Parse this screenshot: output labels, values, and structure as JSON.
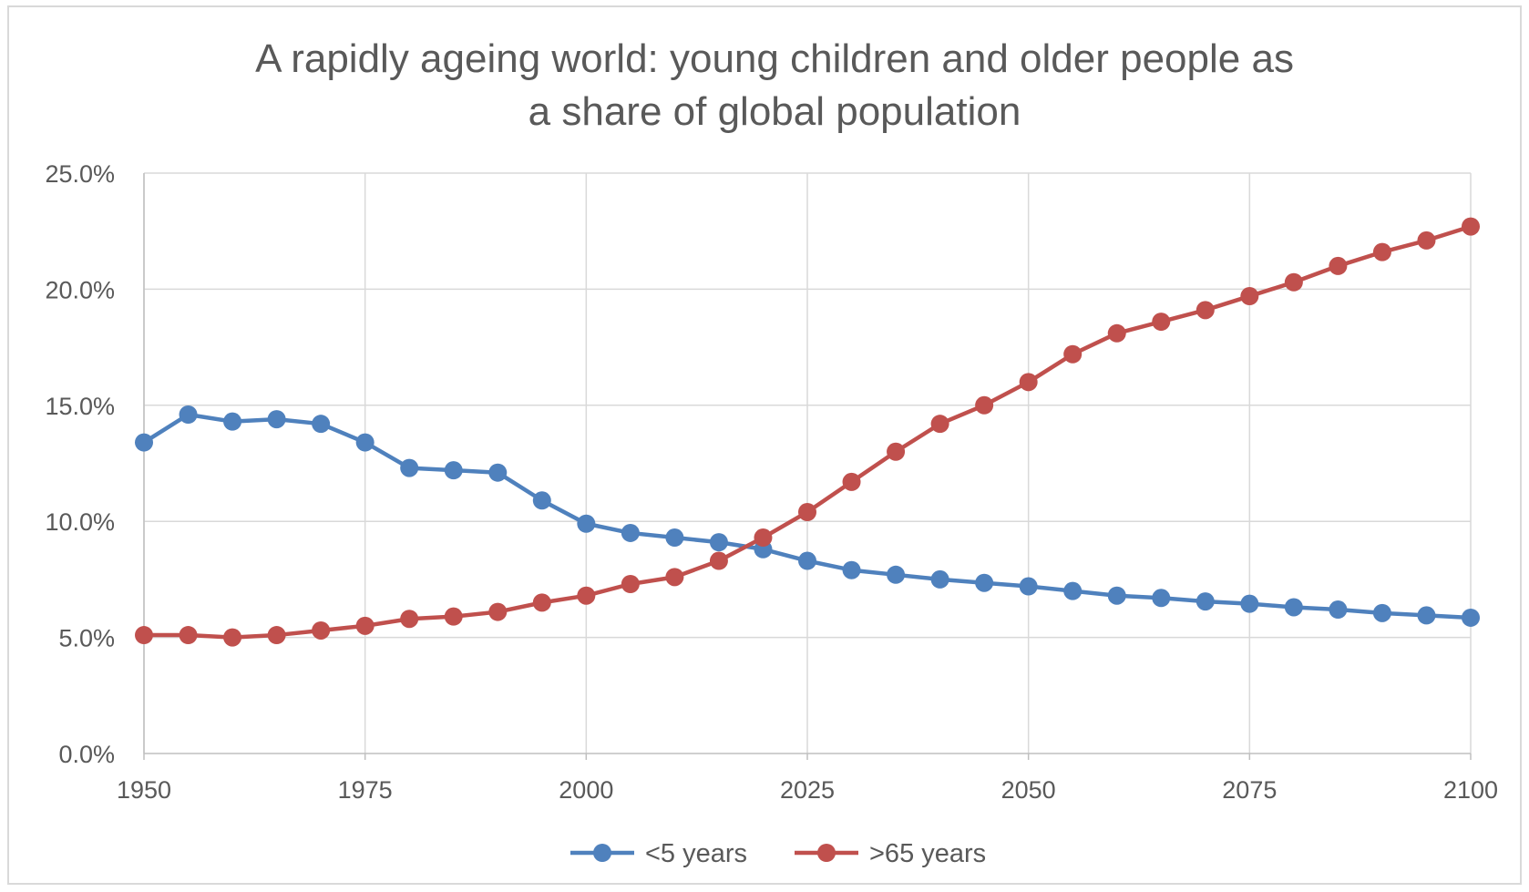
{
  "chart_data": {
    "type": "line",
    "title": "A rapidly ageing world: young children and older people as a share of global population",
    "title_lines": [
      "A rapidly ageing world: young children and older people as",
      "a share of global population"
    ],
    "xlabel": "",
    "ylabel": "",
    "x": [
      1950,
      1955,
      1960,
      1965,
      1970,
      1975,
      1980,
      1985,
      1990,
      1995,
      2000,
      2005,
      2010,
      2015,
      2020,
      2025,
      2030,
      2035,
      2040,
      2045,
      2050,
      2055,
      2060,
      2065,
      2070,
      2075,
      2080,
      2085,
      2090,
      2095,
      2100
    ],
    "x_ticks": [
      1950,
      1975,
      2000,
      2025,
      2050,
      2075,
      2100
    ],
    "x_tick_labels": [
      "1950",
      "1975",
      "2000",
      "2025",
      "2050",
      "2075",
      "2100"
    ],
    "xlim": [
      1950,
      2100
    ],
    "y_ticks": [
      0,
      5,
      10,
      15,
      20,
      25
    ],
    "y_tick_labels": [
      "0.0%",
      "5.0%",
      "10.0%",
      "15.0%",
      "20.0%",
      "25.0%"
    ],
    "ylim": [
      0,
      25
    ],
    "y_unit": "%",
    "grid": true,
    "legend_position": "bottom",
    "series": [
      {
        "name": "<5 years",
        "color": "#4f81bd",
        "values": [
          13.4,
          14.6,
          14.3,
          14.4,
          14.2,
          13.4,
          12.3,
          12.2,
          12.1,
          10.9,
          9.9,
          9.5,
          9.3,
          9.1,
          8.8,
          8.3,
          7.9,
          7.7,
          7.5,
          7.35,
          7.2,
          7.0,
          6.8,
          6.7,
          6.55,
          6.45,
          6.3,
          6.2,
          6.05,
          5.95,
          5.85
        ]
      },
      {
        "name": ">65 years",
        "color": "#c0504d",
        "values": [
          5.1,
          5.1,
          5.0,
          5.1,
          5.3,
          5.5,
          5.8,
          5.9,
          6.1,
          6.5,
          6.8,
          7.3,
          7.6,
          8.3,
          9.3,
          10.4,
          11.7,
          13.0,
          14.2,
          15.0,
          16.0,
          17.2,
          18.1,
          18.6,
          19.1,
          19.7,
          20.3,
          21.0,
          21.6,
          22.1,
          22.7
        ]
      }
    ]
  }
}
